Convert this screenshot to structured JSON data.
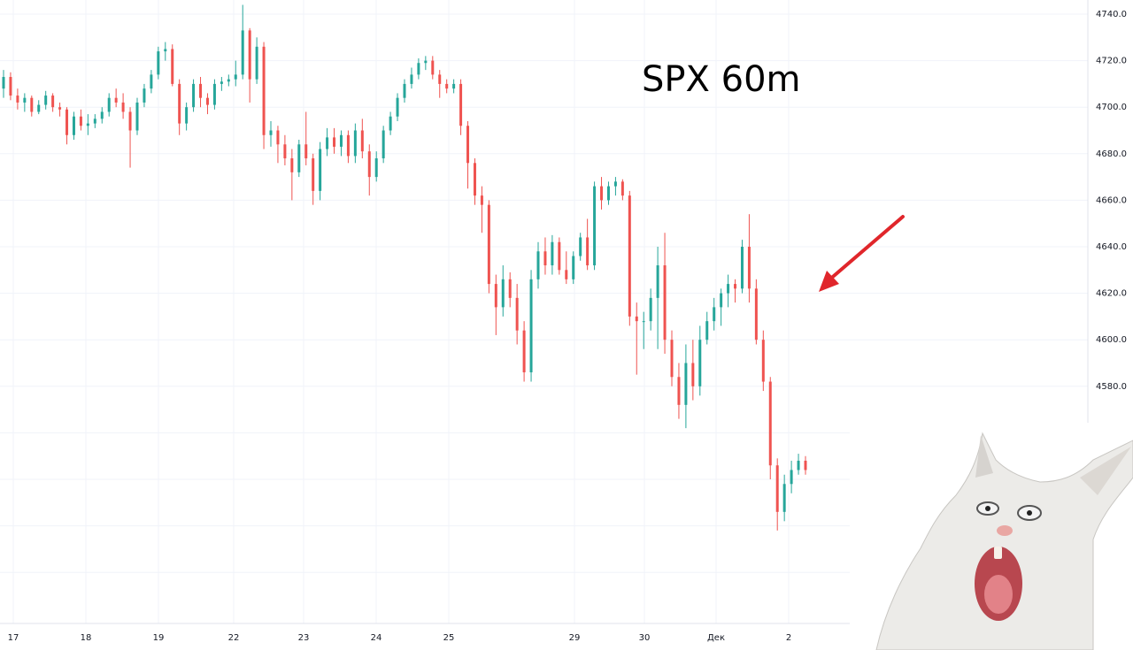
{
  "chart_data": {
    "type": "candlestick",
    "title": "SPX 60m",
    "y_ticks": [
      4740.0,
      4720.0,
      4700.0,
      4680.0,
      4660.0,
      4640.0,
      4620.0,
      4600.0,
      4580.0
    ],
    "y_tick_labels": [
      "4740.0",
      "4720.0",
      "4700.0",
      "4680.0",
      "4660.0",
      "4640.0",
      "4620.0",
      "4600.0",
      "4580.0"
    ],
    "ylim": [
      4500,
      4745
    ],
    "x_tick_labels": [
      "17",
      "18",
      "19",
      "22",
      "23",
      "24",
      "25",
      "29",
      "30",
      "Дек",
      "2"
    ],
    "grid": true,
    "colors": {
      "up": "#26a69a",
      "down": "#ef5350",
      "grid": "#f0f3fa",
      "arrow": "#e0262b"
    },
    "annotations": [
      "red arrow pointing at the Dec 1 close"
    ],
    "candles": [
      {
        "o": 4708,
        "h": 4716,
        "l": 4704,
        "c": 4713
      },
      {
        "o": 4713,
        "h": 4715,
        "l": 4703,
        "c": 4705
      },
      {
        "o": 4705,
        "h": 4708,
        "l": 4699,
        "c": 4702
      },
      {
        "o": 4702,
        "h": 4706,
        "l": 4698,
        "c": 4704
      },
      {
        "o": 4704,
        "h": 4705,
        "l": 4696,
        "c": 4698
      },
      {
        "o": 4698,
        "h": 4703,
        "l": 4697,
        "c": 4701
      },
      {
        "o": 4701,
        "h": 4707,
        "l": 4699,
        "c": 4705
      },
      {
        "o": 4705,
        "h": 4706,
        "l": 4698,
        "c": 4700
      },
      {
        "o": 4700,
        "h": 4702,
        "l": 4696,
        "c": 4699
      },
      {
        "o": 4699,
        "h": 4700,
        "l": 4684,
        "c": 4688
      },
      {
        "o": 4688,
        "h": 4698,
        "l": 4686,
        "c": 4696
      },
      {
        "o": 4696,
        "h": 4699,
        "l": 4690,
        "c": 4692
      },
      {
        "o": 4692,
        "h": 4697,
        "l": 4688,
        "c": 4693
      },
      {
        "o": 4693,
        "h": 4697,
        "l": 4691,
        "c": 4695
      },
      {
        "o": 4695,
        "h": 4700,
        "l": 4693,
        "c": 4698
      },
      {
        "o": 4698,
        "h": 4706,
        "l": 4696,
        "c": 4704
      },
      {
        "o": 4704,
        "h": 4708,
        "l": 4700,
        "c": 4702
      },
      {
        "o": 4702,
        "h": 4706,
        "l": 4695,
        "c": 4698
      },
      {
        "o": 4698,
        "h": 4700,
        "l": 4674,
        "c": 4690
      },
      {
        "o": 4690,
        "h": 4704,
        "l": 4688,
        "c": 4702
      },
      {
        "o": 4702,
        "h": 4710,
        "l": 4700,
        "c": 4708
      },
      {
        "o": 4708,
        "h": 4716,
        "l": 4706,
        "c": 4714
      },
      {
        "o": 4714,
        "h": 4726,
        "l": 4712,
        "c": 4724
      },
      {
        "o": 4724,
        "h": 4728,
        "l": 4720,
        "c": 4725
      },
      {
        "o": 4725,
        "h": 4727,
        "l": 4709,
        "c": 4710
      },
      {
        "o": 4710,
        "h": 4712,
        "l": 4688,
        "c": 4693
      },
      {
        "o": 4693,
        "h": 4702,
        "l": 4690,
        "c": 4700
      },
      {
        "o": 4700,
        "h": 4712,
        "l": 4698,
        "c": 4710
      },
      {
        "o": 4710,
        "h": 4713,
        "l": 4700,
        "c": 4704
      },
      {
        "o": 4704,
        "h": 4706,
        "l": 4697,
        "c": 4701
      },
      {
        "o": 4701,
        "h": 4712,
        "l": 4699,
        "c": 4710
      },
      {
        "o": 4710,
        "h": 4713,
        "l": 4707,
        "c": 4711
      },
      {
        "o": 4711,
        "h": 4714,
        "l": 4709,
        "c": 4712
      },
      {
        "o": 4712,
        "h": 4720,
        "l": 4709,
        "c": 4714
      },
      {
        "o": 4714,
        "h": 4744,
        "l": 4712,
        "c": 4733
      },
      {
        "o": 4733,
        "h": 4734,
        "l": 4702,
        "c": 4712
      },
      {
        "o": 4712,
        "h": 4730,
        "l": 4710,
        "c": 4726
      },
      {
        "o": 4726,
        "h": 4728,
        "l": 4682,
        "c": 4688
      },
      {
        "o": 4688,
        "h": 4694,
        "l": 4683,
        "c": 4690
      },
      {
        "o": 4690,
        "h": 4692,
        "l": 4676,
        "c": 4684
      },
      {
        "o": 4684,
        "h": 4688,
        "l": 4675,
        "c": 4678
      },
      {
        "o": 4678,
        "h": 4682,
        "l": 4660,
        "c": 4672
      },
      {
        "o": 4672,
        "h": 4686,
        "l": 4670,
        "c": 4684
      },
      {
        "o": 4684,
        "h": 4698,
        "l": 4675,
        "c": 4678
      },
      {
        "o": 4678,
        "h": 4680,
        "l": 4658,
        "c": 4664
      },
      {
        "o": 4664,
        "h": 4685,
        "l": 4660,
        "c": 4682
      },
      {
        "o": 4682,
        "h": 4691,
        "l": 4679,
        "c": 4687
      },
      {
        "o": 4687,
        "h": 4691,
        "l": 4680,
        "c": 4683
      },
      {
        "o": 4683,
        "h": 4690,
        "l": 4679,
        "c": 4688
      },
      {
        "o": 4688,
        "h": 4690,
        "l": 4676,
        "c": 4679
      },
      {
        "o": 4679,
        "h": 4693,
        "l": 4676,
        "c": 4690
      },
      {
        "o": 4690,
        "h": 4695,
        "l": 4678,
        "c": 4681
      },
      {
        "o": 4681,
        "h": 4684,
        "l": 4662,
        "c": 4670
      },
      {
        "o": 4670,
        "h": 4681,
        "l": 4668,
        "c": 4678
      },
      {
        "o": 4678,
        "h": 4692,
        "l": 4676,
        "c": 4690
      },
      {
        "o": 4690,
        "h": 4698,
        "l": 4688,
        "c": 4696
      },
      {
        "o": 4696,
        "h": 4706,
        "l": 4694,
        "c": 4704
      },
      {
        "o": 4704,
        "h": 4712,
        "l": 4702,
        "c": 4710
      },
      {
        "o": 4710,
        "h": 4717,
        "l": 4708,
        "c": 4714
      },
      {
        "o": 4714,
        "h": 4721,
        "l": 4712,
        "c": 4719
      },
      {
        "o": 4719,
        "h": 4722,
        "l": 4716,
        "c": 4720
      },
      {
        "o": 4720,
        "h": 4722,
        "l": 4712,
        "c": 4714
      },
      {
        "o": 4714,
        "h": 4716,
        "l": 4704,
        "c": 4710
      },
      {
        "o": 4710,
        "h": 4712,
        "l": 4706,
        "c": 4708
      },
      {
        "o": 4708,
        "h": 4712,
        "l": 4706,
        "c": 4710
      },
      {
        "o": 4710,
        "h": 4712,
        "l": 4688,
        "c": 4692
      },
      {
        "o": 4692,
        "h": 4694,
        "l": 4665,
        "c": 4676
      },
      {
        "o": 4676,
        "h": 4678,
        "l": 4658,
        "c": 4662
      },
      {
        "o": 4662,
        "h": 4666,
        "l": 4646,
        "c": 4658
      },
      {
        "o": 4658,
        "h": 4660,
        "l": 4620,
        "c": 4624
      },
      {
        "o": 4624,
        "h": 4628,
        "l": 4602,
        "c": 4614
      },
      {
        "o": 4614,
        "h": 4632,
        "l": 4610,
        "c": 4626
      },
      {
        "o": 4626,
        "h": 4629,
        "l": 4614,
        "c": 4618
      },
      {
        "o": 4618,
        "h": 4624,
        "l": 4598,
        "c": 4604
      },
      {
        "o": 4604,
        "h": 4608,
        "l": 4582,
        "c": 4586
      },
      {
        "o": 4586,
        "h": 4630,
        "l": 4582,
        "c": 4626
      },
      {
        "o": 4626,
        "h": 4642,
        "l": 4622,
        "c": 4638
      },
      {
        "o": 4638,
        "h": 4644,
        "l": 4628,
        "c": 4632
      },
      {
        "o": 4632,
        "h": 4645,
        "l": 4628,
        "c": 4642
      },
      {
        "o": 4642,
        "h": 4644,
        "l": 4628,
        "c": 4630
      },
      {
        "o": 4630,
        "h": 4638,
        "l": 4624,
        "c": 4626
      },
      {
        "o": 4626,
        "h": 4638,
        "l": 4624,
        "c": 4636
      },
      {
        "o": 4636,
        "h": 4646,
        "l": 4634,
        "c": 4644
      },
      {
        "o": 4644,
        "h": 4652,
        "l": 4630,
        "c": 4632
      },
      {
        "o": 4632,
        "h": 4668,
        "l": 4630,
        "c": 4666
      },
      {
        "o": 4666,
        "h": 4670,
        "l": 4656,
        "c": 4660
      },
      {
        "o": 4660,
        "h": 4668,
        "l": 4658,
        "c": 4666
      },
      {
        "o": 4666,
        "h": 4670,
        "l": 4662,
        "c": 4668
      },
      {
        "o": 4668,
        "h": 4669,
        "l": 4660,
        "c": 4662
      },
      {
        "o": 4662,
        "h": 4664,
        "l": 4606,
        "c": 4610
      },
      {
        "o": 4610,
        "h": 4616,
        "l": 4585,
        "c": 4608
      },
      {
        "o": 4608,
        "h": 4612,
        "l": 4596,
        "c": 4608
      },
      {
        "o": 4608,
        "h": 4622,
        "l": 4604,
        "c": 4618
      },
      {
        "o": 4618,
        "h": 4640,
        "l": 4596,
        "c": 4632
      },
      {
        "o": 4632,
        "h": 4646,
        "l": 4594,
        "c": 4600
      },
      {
        "o": 4600,
        "h": 4604,
        "l": 4580,
        "c": 4584
      },
      {
        "o": 4584,
        "h": 4590,
        "l": 4566,
        "c": 4572
      },
      {
        "o": 4572,
        "h": 4598,
        "l": 4562,
        "c": 4590
      },
      {
        "o": 4590,
        "h": 4600,
        "l": 4574,
        "c": 4580
      },
      {
        "o": 4580,
        "h": 4606,
        "l": 4576,
        "c": 4600
      },
      {
        "o": 4600,
        "h": 4612,
        "l": 4598,
        "c": 4608
      },
      {
        "o": 4608,
        "h": 4618,
        "l": 4604,
        "c": 4614
      },
      {
        "o": 4614,
        "h": 4622,
        "l": 4606,
        "c": 4620
      },
      {
        "o": 4620,
        "h": 4628,
        "l": 4614,
        "c": 4624
      },
      {
        "o": 4624,
        "h": 4626,
        "l": 4616,
        "c": 4622
      },
      {
        "o": 4622,
        "h": 4643,
        "l": 4620,
        "c": 4640
      },
      {
        "o": 4640,
        "h": 4654,
        "l": 4616,
        "c": 4622
      },
      {
        "o": 4622,
        "h": 4626,
        "l": 4598,
        "c": 4600
      },
      {
        "o": 4600,
        "h": 4604,
        "l": 4578,
        "c": 4582
      },
      {
        "o": 4582,
        "h": 4584,
        "l": 4540,
        "c": 4546
      },
      {
        "o": 4546,
        "h": 4549,
        "l": 4518,
        "c": 4526
      },
      {
        "o": 4526,
        "h": 4542,
        "l": 4522,
        "c": 4538
      },
      {
        "o": 4538,
        "h": 4548,
        "l": 4534,
        "c": 4544
      },
      {
        "o": 4544,
        "h": 4551,
        "l": 4542,
        "c": 4548
      },
      {
        "o": 4548,
        "h": 4550,
        "l": 4542,
        "c": 4544
      }
    ]
  }
}
